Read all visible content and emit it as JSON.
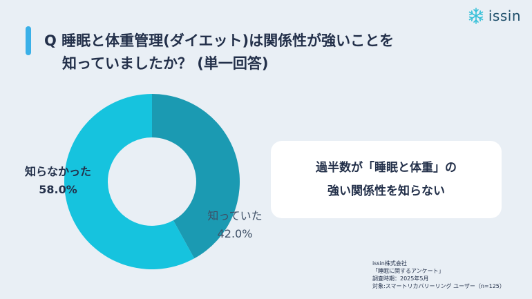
{
  "title": {
    "line1": "Q 睡眠と体重管理(ダイエット)は関係性が強いことを",
    "line2": "知っていましたか？ (単一回答)"
  },
  "logo": {
    "text": "issin",
    "icon": "snowflake-icon"
  },
  "chart_data": {
    "type": "pie",
    "slices": [
      {
        "label": "知っていた",
        "value": 42.0,
        "value_label": "42.0%",
        "color": "#1b9ab2"
      },
      {
        "label": "知らなかった",
        "value": 58.0,
        "value_label": "58.0%",
        "color": "#16c3de"
      }
    ]
  },
  "callout": {
    "line1": "過半数が「睡眠と体重」の",
    "line2": "強い関係性を知らない"
  },
  "footer": {
    "line1": "issin株式会社",
    "line2": "「睡眠に関するアンケート」",
    "line3": "調査時期：2025年5月",
    "line4": "対象:スマートリカバリーリング ユーザー（n=125）"
  }
}
